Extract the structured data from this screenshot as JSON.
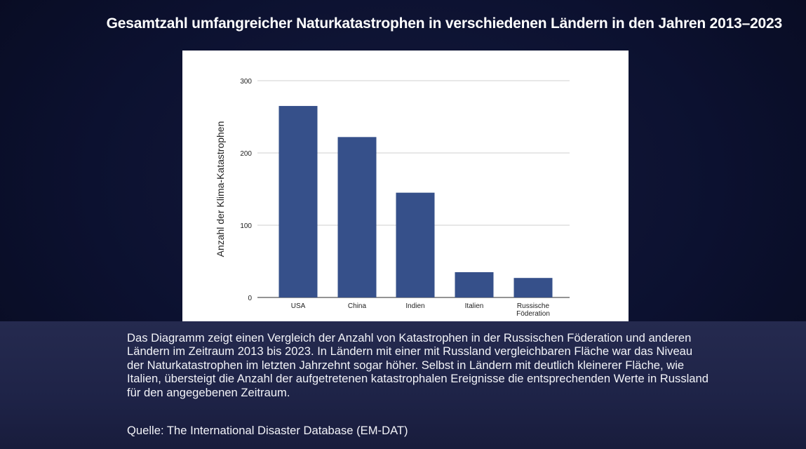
{
  "header": {
    "title": "Gesamtzahl umfangreicher Naturkatastrophen in verschiedenen Ländern in den Jahren 2013–2023"
  },
  "chart_data": {
    "type": "bar",
    "title": "",
    "xlabel": "",
    "ylabel": "Anzahl der Klima-Katastrophen",
    "categories": [
      "USA",
      "China",
      "Indien",
      "Italien",
      "Russische Föderation"
    ],
    "category_lines": [
      [
        "USA"
      ],
      [
        "China"
      ],
      [
        "Indien"
      ],
      [
        "Italien"
      ],
      [
        "Russische",
        "Föderation"
      ]
    ],
    "values": [
      265,
      222,
      145,
      35,
      27
    ],
    "ylim": [
      0,
      300
    ],
    "yticks": [
      0,
      100,
      200,
      300
    ],
    "grid": true,
    "bar_color": "#36508a"
  },
  "caption": {
    "text": "Das Diagramm zeigt einen Vergleich der Anzahl von Katastrophen in der Russischen Föderation und anderen Ländern im Zeitraum 2013 bis 2023. In Ländern mit einer mit Russland vergleichbaren Fläche war das Niveau der Naturkatastrophen im letzten Jahrzehnt sogar höher. Selbst in Ländern mit deutlich kleinerer Fläche, wie Italien, übersteigt die Anzahl der aufgetretenen katastrophalen Ereignisse die entsprechenden Werte in Russland für den angegebenen Zeitraum.",
    "source": "Quelle: The International Disaster Database (EM-DAT)"
  }
}
